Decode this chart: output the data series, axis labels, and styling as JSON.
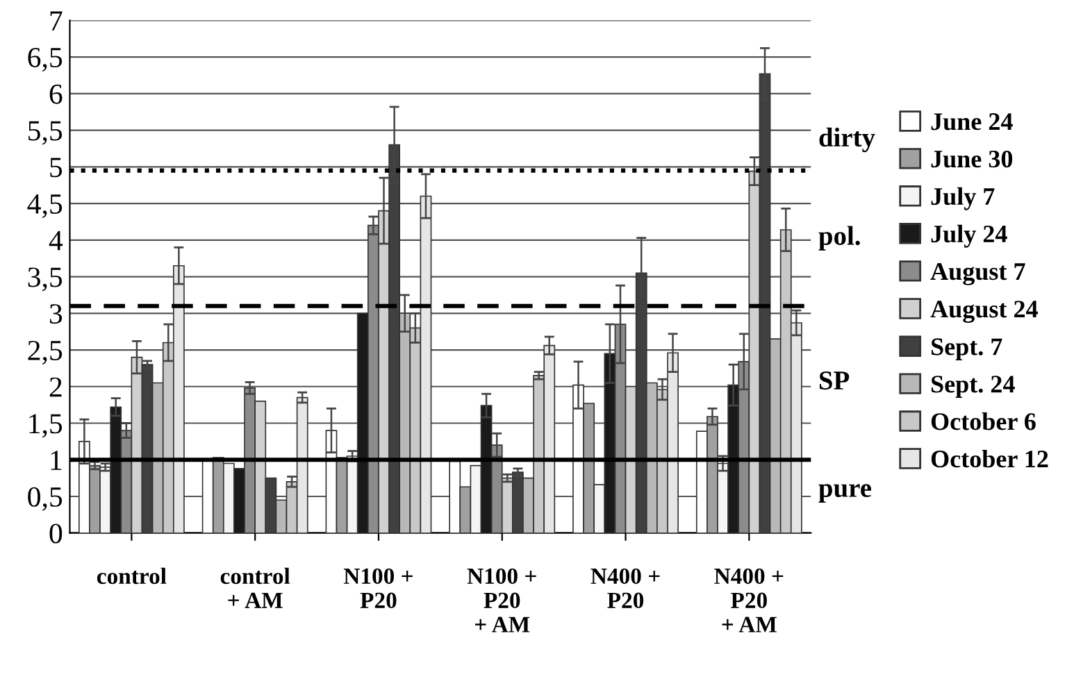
{
  "chart_data": {
    "type": "bar",
    "categories": [
      "control",
      "control\n+ AM",
      "N100 +\nP20",
      "N100 +\nP20\n+ AM",
      "N400 +\nP20",
      "N400 +\nP20\n+ AM"
    ],
    "series": [
      {
        "name": "June 24",
        "color": "#ffffff",
        "values": [
          1.25,
          1.0,
          1.4,
          0.98,
          2.02,
          1.39
        ],
        "errors": [
          0.3,
          null,
          0.3,
          null,
          0.32,
          null
        ]
      },
      {
        "name": "June 30",
        "color": "#a0a0a0",
        "values": [
          0.92,
          1.03,
          1.03,
          0.63,
          1.77,
          1.59
        ],
        "errors": [
          0.05,
          null,
          null,
          null,
          null,
          0.11
        ]
      },
      {
        "name": "July 7",
        "color": "#f4f4f4",
        "values": [
          0.9,
          0.95,
          1.05,
          0.92,
          0.66,
          0.95
        ],
        "errors": [
          0.05,
          null,
          0.07,
          null,
          null,
          0.1
        ]
      },
      {
        "name": "July 24",
        "color": "#1a1a1a",
        "values": [
          1.72,
          0.88,
          3.0,
          1.74,
          2.45,
          2.02
        ],
        "errors": [
          0.12,
          null,
          null,
          0.16,
          0.4,
          0.28
        ]
      },
      {
        "name": "August 7",
        "color": "#8c8c8c",
        "values": [
          1.4,
          1.98,
          4.2,
          1.2,
          2.85,
          2.34
        ],
        "errors": [
          0.1,
          0.08,
          0.12,
          0.16,
          0.53,
          0.38
        ]
      },
      {
        "name": "August 24",
        "color": "#d0d0d0",
        "values": [
          2.4,
          1.8,
          4.4,
          0.75,
          2.0,
          4.94
        ],
        "errors": [
          0.22,
          null,
          0.45,
          0.05,
          null,
          0.19
        ]
      },
      {
        "name": "Sept. 7",
        "color": "#404040",
        "values": [
          2.3,
          0.75,
          5.3,
          0.83,
          3.55,
          6.27
        ],
        "errors": [
          0.05,
          null,
          0.52,
          0.05,
          0.48,
          0.35
        ]
      },
      {
        "name": "Sept. 24",
        "color": "#b8b8b8",
        "values": [
          2.05,
          0.45,
          3.0,
          0.75,
          2.05,
          2.65
        ],
        "errors": [
          null,
          null,
          0.25,
          null,
          null,
          null
        ]
      },
      {
        "name": "October 6",
        "color": "#c8c8c8",
        "values": [
          2.6,
          0.7,
          2.8,
          2.15,
          1.96,
          4.14
        ],
        "errors": [
          0.25,
          0.07,
          0.2,
          0.05,
          0.14,
          0.29
        ]
      },
      {
        "name": "October 12",
        "color": "#e6e6e6",
        "values": [
          3.65,
          1.85,
          4.6,
          2.56,
          2.46,
          2.87
        ],
        "errors": [
          0.25,
          0.07,
          0.3,
          0.12,
          0.26,
          0.17
        ]
      }
    ],
    "ylim": [
      0,
      7
    ],
    "yticks": [
      0,
      {
        "value": 0.5,
        "label": "0,5"
      },
      1,
      {
        "value": 1.5,
        "label": "1,5"
      },
      2,
      {
        "value": 2.5,
        "label": "2,5"
      },
      3,
      {
        "value": 3.5,
        "label": "3,5"
      },
      4,
      {
        "value": 4.5,
        "label": "4,5"
      },
      5,
      {
        "value": 5.5,
        "label": "5,5"
      },
      6,
      {
        "value": 6.5,
        "label": "6,5"
      },
      7
    ],
    "grid": "y",
    "legend": "right",
    "ref_lines": [
      {
        "axis": "y",
        "value": 1,
        "line_style": "solid",
        "color": "#000000"
      },
      {
        "axis": "y",
        "value": 3.1,
        "line_style": "dashed",
        "color": "#000000"
      },
      {
        "axis": "y",
        "value": 4.95,
        "line_style": "dotted",
        "color": "#000000"
      }
    ],
    "annotations": [
      "dirty",
      "pol.",
      "SP",
      "pure"
    ]
  }
}
